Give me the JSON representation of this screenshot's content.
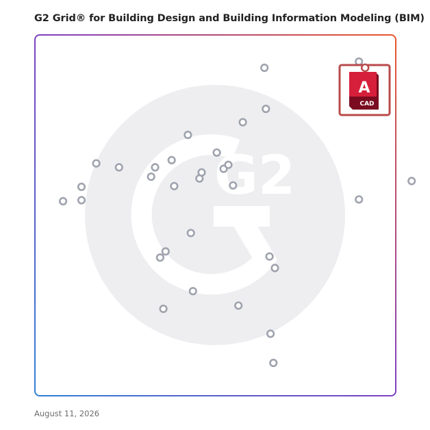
{
  "header": {
    "title": "G2 Grid® for Building Design and Building Information Modeling (BIM)"
  },
  "footer": {
    "date": "August 11, 2026"
  },
  "watermark": {
    "text": "G2"
  },
  "colors": {
    "frame_gradient": [
      "#2f80d6",
      "#7d3fc2",
      "#e8552b"
    ],
    "divider": "#7d5fc2",
    "marker": "#9ea3ad",
    "watermark": "#eeeef1",
    "highlight_border": "#b94a4a",
    "logo_red": "#d61f3a",
    "logo_dark": "#7a0b20"
  },
  "chart_data": {
    "type": "scatter",
    "title": "G2 Grid® for Building Design and Building Information Modeling (BIM)",
    "xlim": [
      0,
      100
    ],
    "ylim": [
      0,
      100
    ],
    "x_split": 50,
    "y_split": 50,
    "grid": false,
    "points": [
      {
        "x": 7.8,
        "y": 53.9
      },
      {
        "x": 12.9,
        "y": 54.2
      },
      {
        "x": 12.9,
        "y": 57.9
      },
      {
        "x": 17.0,
        "y": 64.4
      },
      {
        "x": 23.3,
        "y": 63.3
      },
      {
        "x": 32.2,
        "y": 60.7
      },
      {
        "x": 33.3,
        "y": 63.3
      },
      {
        "x": 37.9,
        "y": 65.3
      },
      {
        "x": 38.6,
        "y": 58.1
      },
      {
        "x": 42.4,
        "y": 72.3
      },
      {
        "x": 45.6,
        "y": 60.2
      },
      {
        "x": 46.2,
        "y": 61.9
      },
      {
        "x": 50.4,
        "y": 67.4
      },
      {
        "x": 52.3,
        "y": 62.9
      },
      {
        "x": 53.6,
        "y": 64.0
      },
      {
        "x": 54.9,
        "y": 58.3
      },
      {
        "x": 57.6,
        "y": 75.8
      },
      {
        "x": 63.6,
        "y": 90.9
      },
      {
        "x": 64.0,
        "y": 79.5
      },
      {
        "x": 89.8,
        "y": 54.4
      },
      {
        "x": 104.4,
        "y": 59.5
      },
      {
        "x": 43.2,
        "y": 45.1
      },
      {
        "x": 34.7,
        "y": 38.3
      },
      {
        "x": 36.2,
        "y": 40.0
      },
      {
        "x": 43.8,
        "y": 29.0
      },
      {
        "x": 35.6,
        "y": 24.1
      },
      {
        "x": 56.4,
        "y": 25.0
      },
      {
        "x": 65.3,
        "y": 17.2
      },
      {
        "x": 66.1,
        "y": 9.1
      },
      {
        "x": 65.0,
        "y": 38.6
      },
      {
        "x": 66.5,
        "y": 35.4
      },
      {
        "x": 89.8,
        "y": 92.6
      }
    ],
    "highlighted": {
      "label": "CAD",
      "letter": "A",
      "x": 91.5,
      "y": 90.9
    }
  }
}
